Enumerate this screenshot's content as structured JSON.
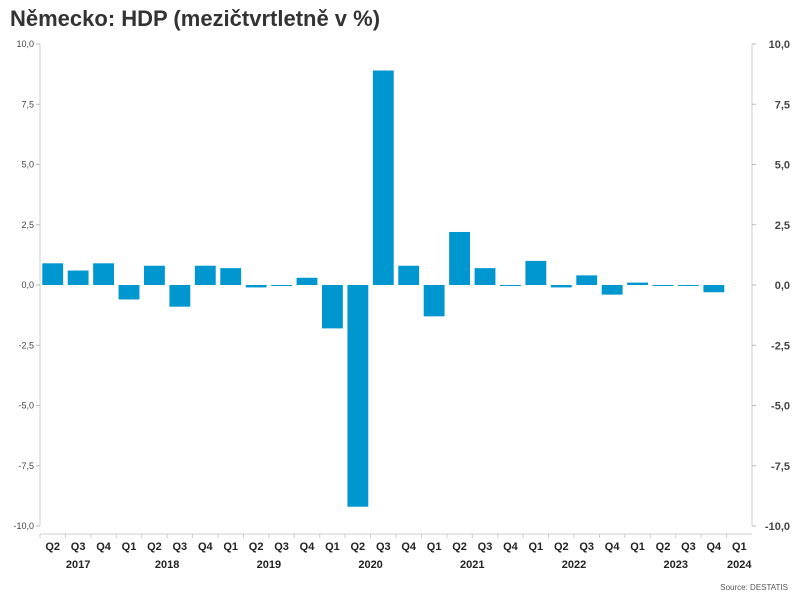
{
  "chart_data": {
    "type": "bar",
    "title": "Německo: HDP (mezičtvrtletně v %)",
    "source": "Source: DESTATIS",
    "ylim": [
      -10,
      10
    ],
    "yticks": [
      "10,0",
      "7,5",
      "5,0",
      "2,5",
      "0,0",
      "-2,5",
      "-5,0",
      "-7,5",
      "-10,0"
    ],
    "ytick_values": [
      10,
      7.5,
      5,
      2.5,
      0,
      -2.5,
      -5,
      -7.5,
      -10
    ],
    "categories": [
      "Q2",
      "Q3",
      "Q4",
      "Q1",
      "Q2",
      "Q3",
      "Q4",
      "Q1",
      "Q2",
      "Q3",
      "Q4",
      "Q1",
      "Q2",
      "Q3",
      "Q4",
      "Q1",
      "Q2",
      "Q3",
      "Q4",
      "Q1",
      "Q2",
      "Q3",
      "Q4",
      "Q1",
      "Q2",
      "Q3",
      "Q4",
      "Q1"
    ],
    "values": [
      0.9,
      0.6,
      0.9,
      -0.6,
      0.8,
      -0.9,
      0.8,
      0.7,
      -0.1,
      0.0,
      0.3,
      -1.8,
      -9.2,
      8.9,
      0.8,
      -1.3,
      2.2,
      0.7,
      0.0,
      1.0,
      -0.1,
      0.4,
      -0.4,
      0.1,
      0.0,
      0.0,
      -0.3,
      null
    ],
    "years": [
      {
        "label": "2017",
        "start": 0,
        "count": 3
      },
      {
        "label": "2018",
        "start": 3,
        "count": 4
      },
      {
        "label": "2019",
        "start": 7,
        "count": 4
      },
      {
        "label": "2020",
        "start": 11,
        "count": 4
      },
      {
        "label": "2021",
        "start": 15,
        "count": 4
      },
      {
        "label": "2022",
        "start": 19,
        "count": 4
      },
      {
        "label": "2023",
        "start": 23,
        "count": 4
      },
      {
        "label": "2024",
        "start": 27,
        "count": 1
      }
    ],
    "bar_color": "#0096d0",
    "grid": false
  }
}
